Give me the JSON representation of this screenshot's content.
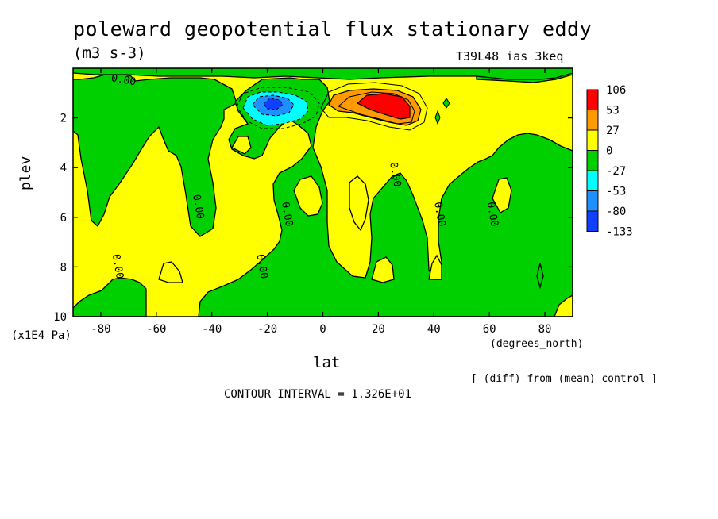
{
  "chart_data": {
    "type": "heatmap",
    "title": "poleward geopotential flux stationary eddy",
    "units": "(m3 s-3)",
    "run_label": "T39L48_ias_3keq",
    "xlabel": "lat",
    "xunit": "(degrees_north)",
    "ylabel": "plev",
    "y_multiplier": "(x1E4 Pa)",
    "xlim": [
      -90,
      90
    ],
    "ylim": [
      10,
      0
    ],
    "x_ticks": [
      -80,
      -60,
      -40,
      -20,
      0,
      20,
      40,
      60,
      80
    ],
    "x_tick_labels": [
      "-80",
      "-60",
      "-40",
      "-20",
      "0",
      "20",
      "40",
      "60",
      "80"
    ],
    "y_ticks": [
      2,
      4,
      6,
      8,
      10
    ],
    "y_tick_labels": [
      "2",
      "4",
      "6",
      "8",
      "10"
    ],
    "note": "[ (diff) from (mean) control ]",
    "contour_interval": "CONTOUR INTERVAL = 1.326E+01",
    "colorbar": {
      "labels": [
        "106",
        "53",
        "27",
        "0",
        "-27",
        "-53",
        "-80",
        "-133"
      ],
      "colors": [
        "#ff0000",
        "#ff9a00",
        "#ffff00",
        "#00d000",
        "#00ffff",
        "#1e90ff",
        "#1040ff"
      ]
    },
    "contour_label": "0.00",
    "contour_labels_at": [
      {
        "lat": -72,
        "plev": 0.6
      },
      {
        "lat": -46,
        "plev": 5.6
      },
      {
        "lat": -14,
        "plev": 5.9
      },
      {
        "lat": -23,
        "plev": 8.0
      },
      {
        "lat": -75,
        "plev": 8.0
      },
      {
        "lat": 25,
        "plev": 4.3
      },
      {
        "lat": 41,
        "plev": 5.9
      },
      {
        "lat": 60,
        "plev": 5.9
      }
    ],
    "features": [
      {
        "sign": "positive",
        "peak_lat": 22,
        "peak_plev": 1.5,
        "peak_value": 106
      },
      {
        "sign": "negative",
        "peak_lat": -19,
        "peak_plev": 1.4,
        "peak_value": -80
      }
    ]
  }
}
